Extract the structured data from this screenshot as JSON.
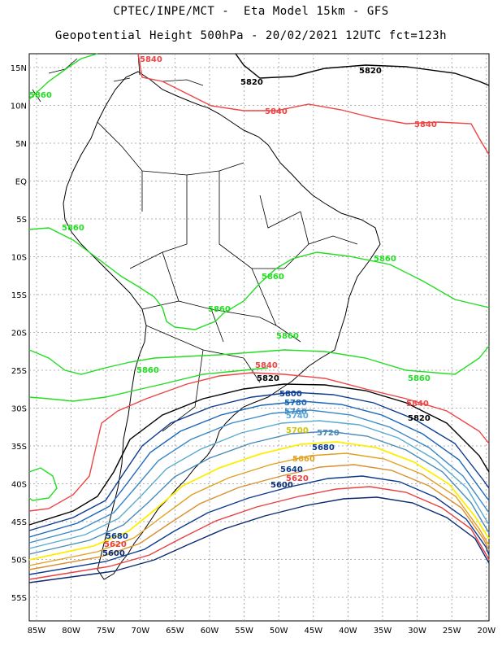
{
  "title_line1": "CPTEC/INPE/MCT -  Eta Model 15km - GFS",
  "title_line2": "Geopotential Height 500hPa - 20/02/2021 12UTC fct=123h",
  "lat_labels": [
    "15N",
    "10N",
    "5N",
    "EQ",
    "5S",
    "10S",
    "15S",
    "20S",
    "25S",
    "30S",
    "35S",
    "40S",
    "45S",
    "50S",
    "55S"
  ],
  "lon_labels": [
    "85W",
    "80W",
    "75W",
    "70W",
    "65W",
    "60W",
    "55W",
    "50W",
    "45W",
    "40W",
    "35W",
    "30W",
    "25W",
    "20W"
  ],
  "contour_labels": {
    "l5840_top": "5840",
    "l5820_a": "5820",
    "l5820_b": "5820",
    "l5840_a": "5840",
    "l5840_b": "5840",
    "l5860_nw": "5860",
    "l5860_w": "5860",
    "l5860_e": "5860",
    "l5860_c": "5860",
    "l5860_c2": "5860",
    "l5860_s": "5860",
    "l5860_sw": "5860",
    "l5860_se": "5860",
    "l5840_s": "5840",
    "l5820_s": "5820",
    "l5840_se": "5840",
    "l5820_se": "5820",
    "l5800": "5800",
    "l5780": "5780",
    "l5760": "5760",
    "l5740": "5740",
    "l5700": "5700",
    "l5720": "5720",
    "l5680": "5680",
    "l5660": "5660",
    "l5640": "5640",
    "l5620": "5620",
    "l5600": "5600",
    "l5680_w": "5680",
    "l5620_w": "5620",
    "l5600_w": "5600"
  },
  "colors": {
    "c5860": "#22dd22",
    "c5840": "#ee4444",
    "c5820": "#000000",
    "c5800": "#0b3a8f",
    "c5780": "#1a66b8",
    "c5760": "#3a88c8",
    "c5740": "#5aaad0",
    "c5720": "#4a8ab8",
    "c5700": "#ffee00",
    "c5680": "#e0a020",
    "c5660": "#d89030",
    "c5640": "#e05050",
    "c5620": "#e84040",
    "c5600": "#0a2a70"
  }
}
